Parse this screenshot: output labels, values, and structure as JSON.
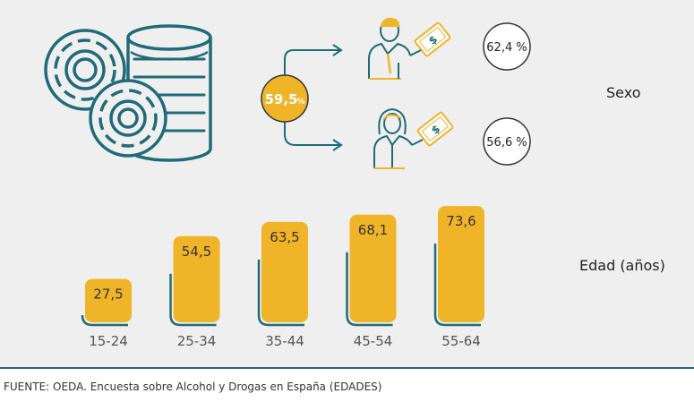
{
  "colors": {
    "accent": "#f0b428",
    "teal": "#1f6b7a",
    "background": "#efefef"
  },
  "icons": {
    "coins": "coin-stack-icon",
    "man": "man-with-banknote-icon",
    "woman": "woman-with-banknote-icon"
  },
  "labels": {
    "sexo": "Sexo",
    "edad": "Edad (años)"
  },
  "source": "FUENTE: OEDA. Encuesta sobre Alcohol y Drogas en España (EDADES)",
  "chart_data": [
    {
      "type": "bar",
      "title": "Edad (años)",
      "categories": [
        "15-24",
        "25-34",
        "35-44",
        "45-54",
        "55-64"
      ],
      "values": [
        27.5,
        54.5,
        63.5,
        68.1,
        73.6
      ],
      "value_labels": [
        "27,5",
        "54,5",
        "63,5",
        "68,1",
        "73,6"
      ],
      "ylim": [
        0,
        80
      ],
      "grid": false,
      "legend": "none"
    },
    {
      "type": "table",
      "title": "Sexo",
      "total": {
        "value": 59.5,
        "label": "59,5",
        "unit": "%"
      },
      "rows": [
        {
          "group_icon": "man-with-banknote-icon",
          "value": 62.4,
          "label": "62,4 %"
        },
        {
          "group_icon": "woman-with-banknote-icon",
          "value": 56.6,
          "label": "56,6 %"
        }
      ]
    }
  ]
}
